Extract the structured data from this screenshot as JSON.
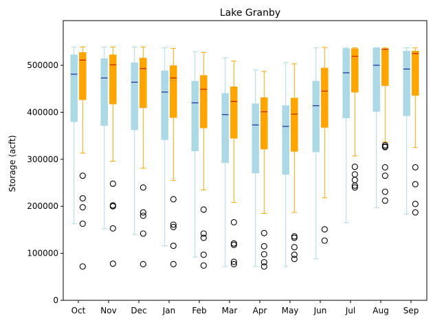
{
  "chart_data": {
    "type": "box",
    "title": "Lake Granby",
    "ylabel": "Storage (acft)",
    "xlabel": "",
    "ylim": [
      0,
      595000
    ],
    "yticks": [
      0,
      100000,
      200000,
      300000,
      400000,
      500000
    ],
    "ytick_labels": [
      "0",
      "100000",
      "200000",
      "300000",
      "400000",
      "500000"
    ],
    "categories": [
      "Oct",
      "Nov",
      "Dec",
      "Jan",
      "Feb",
      "Mar",
      "Apr",
      "May",
      "Jun",
      "Jul",
      "Aug",
      "Sep"
    ],
    "grid": false,
    "series": [
      {
        "color": "#add8e6",
        "median_color": "#00008b",
        "boxes": [
          {
            "whislo": 163000,
            "q1": 380000,
            "med": 481000,
            "q3": 522000,
            "whishi": 539000,
            "fliers": []
          },
          {
            "whislo": 152000,
            "q1": 372000,
            "med": 473000,
            "q3": 514000,
            "whishi": 539000,
            "fliers": []
          },
          {
            "whislo": 140000,
            "q1": 363000,
            "med": 464000,
            "q3": 505000,
            "whishi": 539000,
            "fliers": []
          },
          {
            "whislo": 116000,
            "q1": 342000,
            "med": 443000,
            "q3": 488000,
            "whishi": 537000,
            "fliers": []
          },
          {
            "whislo": 92000,
            "q1": 318000,
            "med": 420000,
            "q3": 466000,
            "whishi": 529000,
            "fliers": []
          },
          {
            "whislo": 72000,
            "q1": 293000,
            "med": 395000,
            "q3": 440000,
            "whishi": 516000,
            "fliers": []
          },
          {
            "whislo": 72000,
            "q1": 271000,
            "med": 373000,
            "q3": 418000,
            "whishi": 490000,
            "fliers": []
          },
          {
            "whislo": 72000,
            "q1": 268000,
            "med": 370000,
            "q3": 414000,
            "whishi": 506000,
            "fliers": []
          },
          {
            "whislo": 88000,
            "q1": 316000,
            "med": 414000,
            "q3": 466000,
            "whishi": 537000,
            "fliers": []
          },
          {
            "whislo": 165000,
            "q1": 388000,
            "med": 484000,
            "q3": 535000,
            "whishi": 537000,
            "fliers": []
          },
          {
            "whislo": 197000,
            "q1": 402000,
            "med": 500000,
            "q3": 537000,
            "whishi": 537000,
            "fliers": []
          },
          {
            "whislo": 183000,
            "q1": 393000,
            "med": 492000,
            "q3": 530000,
            "whishi": 537000,
            "fliers": []
          }
        ]
      },
      {
        "color": "#ffa500",
        "median_color": "#cc0000",
        "boxes": [
          {
            "whislo": 313000,
            "q1": 427000,
            "med": 511000,
            "q3": 527000,
            "whishi": 539000,
            "fliers": [
              265000,
              217000,
              198000,
              163000,
              72000
            ]
          },
          {
            "whislo": 296000,
            "q1": 418000,
            "med": 501000,
            "q3": 522000,
            "whishi": 539000,
            "fliers": [
              248000,
              202000,
              200000,
              153000,
              78000
            ]
          },
          {
            "whislo": 281000,
            "q1": 410000,
            "med": 493000,
            "q3": 515000,
            "whishi": 539000,
            "fliers": [
              240000,
              187000,
              180000,
              142000,
              77000
            ]
          },
          {
            "whislo": 255000,
            "q1": 389000,
            "med": 473000,
            "q3": 499000,
            "whishi": 536000,
            "fliers": [
              215000,
              161000,
              156000,
              116000,
              77000
            ]
          },
          {
            "whislo": 235000,
            "q1": 367000,
            "med": 449000,
            "q3": 478000,
            "whishi": 527000,
            "fliers": [
              193000,
              142000,
              133000,
              97000,
              74000
            ]
          },
          {
            "whislo": 208000,
            "q1": 345000,
            "med": 423000,
            "q3": 454000,
            "whishi": 509000,
            "fliers": [
              166000,
              121000,
              118000,
              82000,
              77000
            ]
          },
          {
            "whislo": 185000,
            "q1": 322000,
            "med": 401000,
            "q3": 431000,
            "whishi": 487000,
            "fliers": [
              143000,
              115000,
              98000,
              81000,
              72000
            ]
          },
          {
            "whislo": 187000,
            "q1": 317000,
            "med": 396000,
            "q3": 430000,
            "whishi": 503000,
            "fliers": [
              136000,
              133000,
              113000,
              97000,
              88000
            ]
          },
          {
            "whislo": 218000,
            "q1": 368000,
            "med": 445000,
            "q3": 494000,
            "whishi": 538000,
            "fliers": [
              151000,
              127000
            ]
          },
          {
            "whislo": 307000,
            "q1": 443000,
            "med": 519000,
            "q3": 535000,
            "whishi": 537000,
            "fliers": [
              284000,
              268000,
              256000,
              244000,
              240000
            ]
          },
          {
            "whislo": 337000,
            "q1": 457000,
            "med": 534000,
            "q3": 535000,
            "whishi": 537000,
            "fliers": [
              330000,
              327000,
              326000,
              283000,
              265000,
              231000,
              212000
            ]
          },
          {
            "whislo": 325000,
            "q1": 436000,
            "med": 525000,
            "q3": 530000,
            "whishi": 537000,
            "fliers": [
              283000,
              247000,
              205000,
              187000
            ]
          }
        ]
      }
    ]
  }
}
